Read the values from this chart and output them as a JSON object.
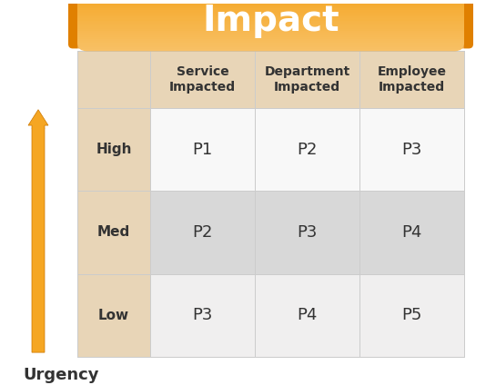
{
  "title": "Impact",
  "title_color": "#ffffff",
  "title_fontsize": 28,
  "title_fontstyle": "bold",
  "urgency_label": "Urgency",
  "urgency_label_fontsize": 13,
  "col_headers": [
    "Service\nImpacted",
    "Department\nImpacted",
    "Employee\nImpacted"
  ],
  "row_headers": [
    "High",
    "Med",
    "Low"
  ],
  "cell_values": [
    [
      "P1",
      "P2",
      "P3"
    ],
    [
      "P2",
      "P3",
      "P4"
    ],
    [
      "P3",
      "P4",
      "P5"
    ]
  ],
  "banner_color_left": "#F5A623",
  "banner_color_right": "#F5A623",
  "banner_gradient_left": "#F5A623",
  "banner_gradient_right": "#FFC84A",
  "header_bg_color": "#E8D5B7",
  "row_header_bg_color": "#E8D5B7",
  "cell_bg_light": "#F0EFEF",
  "cell_bg_medium": "#D8D8D8",
  "cell_bg_white": "#F8F8F8",
  "arrow_color_top": "#F5A623",
  "arrow_color_bottom": "#CC7700",
  "grid_line_color": "#CCCCCC",
  "text_color_dark": "#333333",
  "text_color_cell": "#555555",
  "background_color": "#FFFFFF",
  "col_header_fontsize": 10,
  "row_header_fontsize": 11,
  "cell_fontsize": 13
}
